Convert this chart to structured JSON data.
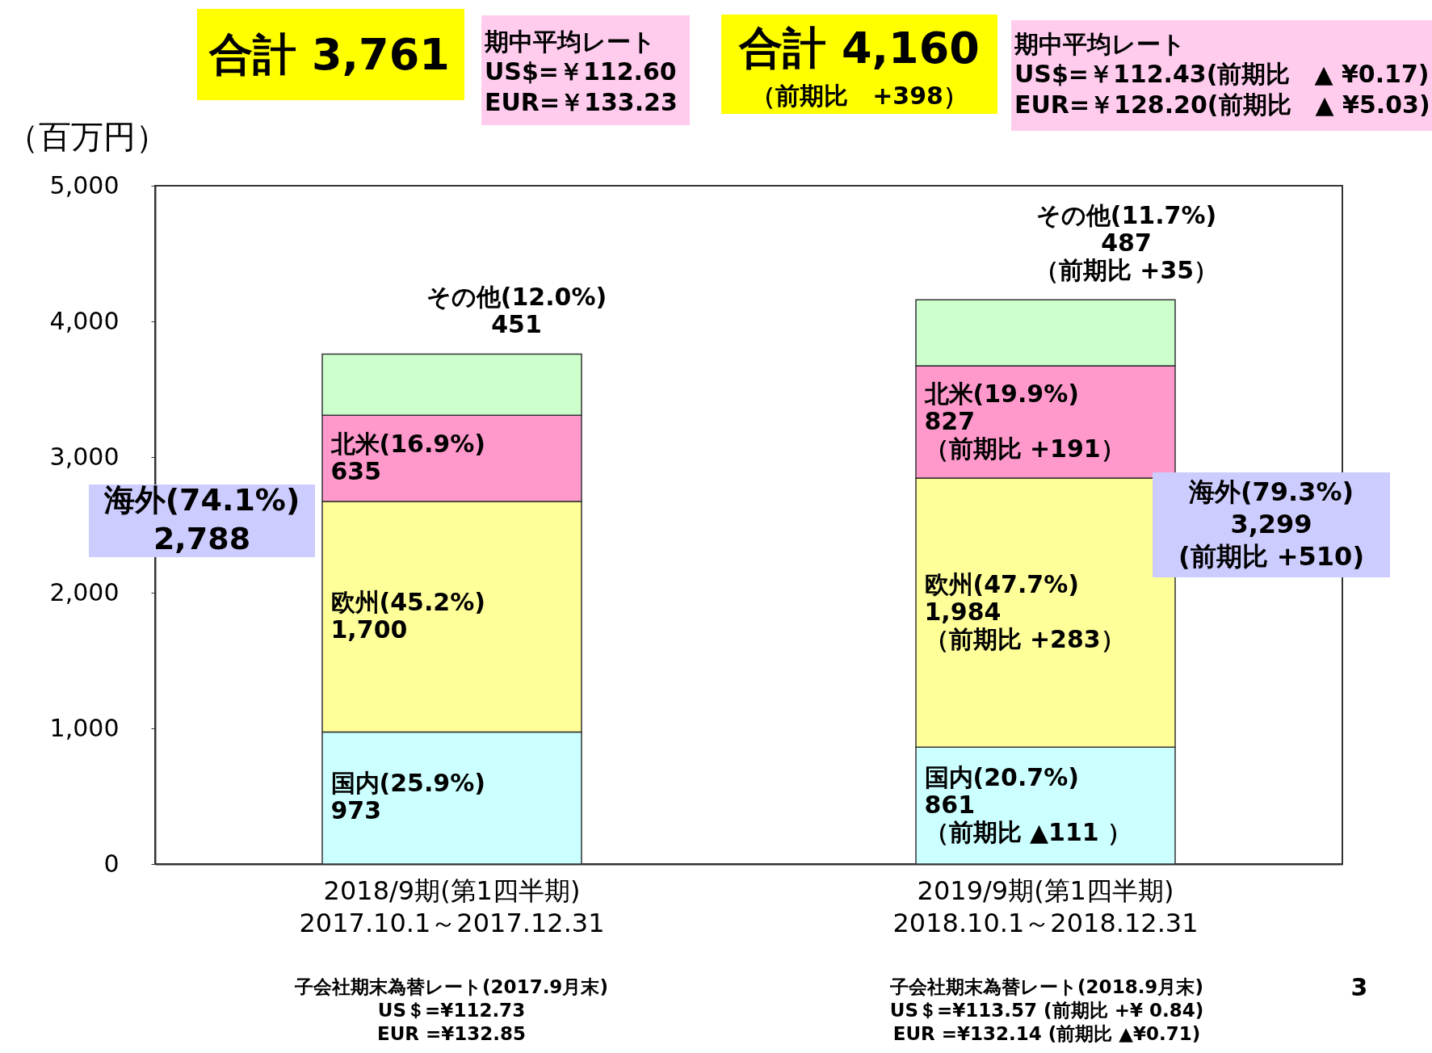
{
  "chart_data": {
    "type": "bar",
    "stacked": true,
    "ylabel": "（百万円）",
    "categories": [
      "2018/9期(第1四半期)\n2017.10.1～2017.12.31",
      "2019/9期(第1四半期)\n2018.10.1～2018.12.31"
    ],
    "series": [
      {
        "color": "#ccffff",
        "values": [
          973,
          861
        ],
        "value_labels": [
          "国内(25.9%)\n973",
          "国内(20.7%)\n861\n（前期比 ▲111 ）"
        ]
      },
      {
        "color": "#ffff99",
        "values": [
          1700,
          1984
        ],
        "value_labels": [
          "欧州(45.2%)\n1,700",
          "欧州(47.7%)\n1,984\n（前期比 +283）"
        ]
      },
      {
        "color": "#ff99cc",
        "values": [
          635,
          827
        ],
        "value_labels": [
          "北米(16.9%)\n635",
          "北米(19.9%)\n827\n（前期比 +191）"
        ]
      },
      {
        "color": "#ccffcc",
        "values": [
          451,
          487
        ],
        "value_labels": [
          "その他(12.0%)\n451",
          "その他(11.7%)\n487\n（前期比 +35）"
        ]
      }
    ],
    "ylim": [
      0,
      5000
    ],
    "yticks": [
      0,
      {
        "value": 1000,
        "label": "1,000"
      },
      {
        "value": 2000,
        "label": "2,000"
      },
      {
        "value": 3000,
        "label": "3,000"
      },
      {
        "value": 4000,
        "label": "4,000"
      },
      {
        "value": 5000,
        "label": "5,000"
      }
    ],
    "grid": false,
    "legend": false,
    "annotations": [
      "合計 3,761",
      "期中平均レート\nUS$=￥112.60\nEUR=￥133.23",
      "合計 4,160",
      "（前期比　+398）",
      "期中平均レート\nUS$=￥112.43(前期比　▲ ¥0.17)\nEUR=￥128.20(前期比　▲ ¥5.03)",
      "海外(74.1%)\n2,788",
      "海外(79.3%)\n3,299\n(前期比 +510)",
      "子会社期末為替レート(2017.9月末)\nUS＄=¥112.73\nEUR =¥132.85",
      "子会社期末為替レート(2018.9月末)\nUS＄=¥113.57 (前期比 +¥ 0.84)\nEUR =¥132.14 (前期比 ▲¥0.71)",
      "3"
    ]
  }
}
